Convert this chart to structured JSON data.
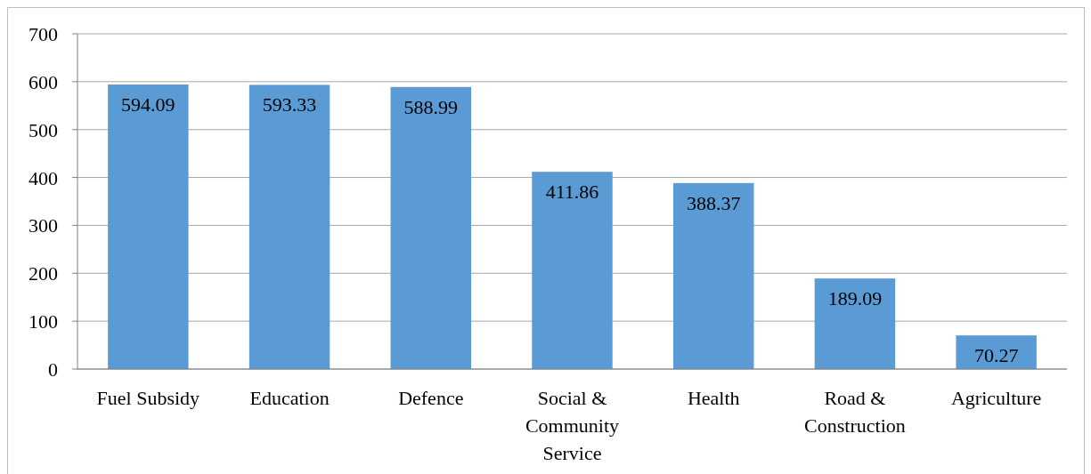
{
  "chart_data": {
    "type": "bar",
    "categories": [
      "Fuel Subsidy",
      "Education",
      "Defence",
      "Social & Community Service",
      "Health",
      "Road & Construction",
      "Agriculture"
    ],
    "values": [
      594.09,
      593.33,
      588.99,
      411.86,
      388.37,
      189.09,
      70.27
    ],
    "color": "#5b9bd5",
    "ylim": [
      0,
      700
    ],
    "yticks": [
      0,
      100,
      200,
      300,
      400,
      500,
      600,
      700
    ],
    "grid": "y",
    "data_labels": true
  }
}
